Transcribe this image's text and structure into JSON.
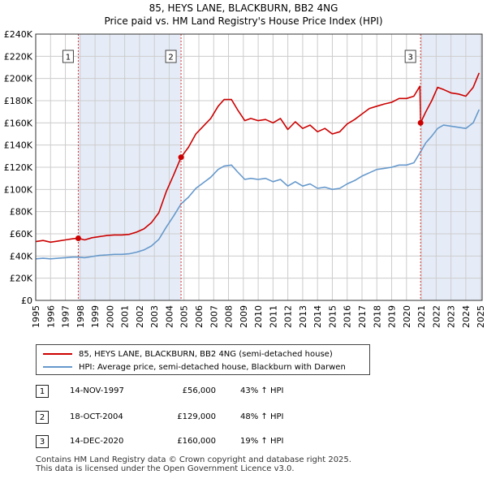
{
  "chart_data": {
    "type": "line",
    "title": "85, HEYS LANE, BLACKBURN, BB2 4NG",
    "subtitle": "Price paid vs. HM Land Registry's House Price Index (HPI)",
    "xlim": [
      1995,
      2025.1
    ],
    "ylim": [
      0,
      240000
    ],
    "x_ticks": [
      1995,
      1996,
      1997,
      1998,
      1999,
      2000,
      2001,
      2002,
      2003,
      2004,
      2005,
      2006,
      2007,
      2008,
      2009,
      2010,
      2011,
      2012,
      2013,
      2014,
      2015,
      2016,
      2017,
      2018,
      2019,
      2020,
      2021,
      2022,
      2023,
      2024,
      2025
    ],
    "y_ticks": [
      0,
      20000,
      40000,
      60000,
      80000,
      100000,
      120000,
      140000,
      160000,
      180000,
      200000,
      220000,
      240000
    ],
    "y_tick_labels": [
      "£0",
      "£20K",
      "£40K",
      "£60K",
      "£80K",
      "£100K",
      "£120K",
      "£140K",
      "£160K",
      "£180K",
      "£200K",
      "£220K",
      "£240K"
    ],
    "grid": true,
    "sale_bands": [
      {
        "start": 1997.87,
        "end": 2004.8
      },
      {
        "start": 2020.95,
        "end": 2025.1
      }
    ],
    "series": [
      {
        "name": "85, HEYS LANE, BLACKBURN, BB2 4NG (semi-detached house)",
        "color": "#cc0000",
        "x": [
          1995,
          1995.5,
          1996,
          1996.5,
          1997,
          1997.5,
          1997.87,
          1998.3,
          1998.8,
          1999.3,
          1999.8,
          2000.3,
          2000.8,
          2001.3,
          2001.8,
          2002.3,
          2002.8,
          2003.3,
          2003.8,
          2004.3,
          2004.8,
          2005.3,
          2005.8,
          2006.3,
          2006.8,
          2007.3,
          2007.7,
          2008.2,
          2008.6,
          2009.1,
          2009.5,
          2010,
          2010.5,
          2011,
          2011.5,
          2012,
          2012.5,
          2013,
          2013.5,
          2014,
          2014.5,
          2015,
          2015.5,
          2016,
          2016.5,
          2017,
          2017.5,
          2018,
          2018.5,
          2019,
          2019.5,
          2020,
          2020.5,
          2020.9,
          2020.95,
          2021.3,
          2021.7,
          2022.1,
          2022.5,
          2023,
          2023.5,
          2024,
          2024.5,
          2024.9
        ],
        "values": [
          53000,
          54000,
          52500,
          53500,
          54500,
          55500,
          56000,
          54500,
          56500,
          57500,
          58500,
          59000,
          59000,
          59500,
          61500,
          64500,
          70000,
          79000,
          98000,
          113000,
          129000,
          138000,
          150000,
          157000,
          164000,
          175000,
          181000,
          181000,
          172000,
          162000,
          164000,
          162000,
          163000,
          160000,
          164000,
          154000,
          161000,
          155000,
          158000,
          152000,
          155000,
          150000,
          152000,
          159000,
          163000,
          168000,
          173000,
          175000,
          177000,
          178500,
          182000,
          182000,
          184000,
          193000,
          160000,
          170000,
          180000,
          192000,
          190000,
          187000,
          186000,
          184000,
          192000,
          205000
        ]
      },
      {
        "name": "HPI: Average price, semi-detached house, Blackburn with Darwen",
        "color": "#6699cc",
        "x": [
          1995,
          1995.5,
          1996,
          1996.5,
          1997,
          1997.5,
          1997.87,
          1998.3,
          1998.8,
          1999.3,
          1999.8,
          2000.3,
          2000.8,
          2001.3,
          2001.8,
          2002.3,
          2002.8,
          2003.3,
          2003.8,
          2004.3,
          2004.8,
          2005.3,
          2005.8,
          2006.3,
          2006.8,
          2007.3,
          2007.7,
          2008.2,
          2008.6,
          2009.1,
          2009.5,
          2010,
          2010.5,
          2011,
          2011.5,
          2012,
          2012.5,
          2013,
          2013.5,
          2014,
          2014.5,
          2015,
          2015.5,
          2016,
          2016.5,
          2017,
          2017.5,
          2018,
          2018.5,
          2019,
          2019.5,
          2020,
          2020.5,
          2020.95,
          2021.3,
          2021.7,
          2022.1,
          2022.5,
          2023,
          2023.5,
          2024,
          2024.5,
          2024.9
        ],
        "values": [
          37500,
          38000,
          37500,
          38000,
          38500,
          39000,
          39000,
          38500,
          39500,
          40500,
          41000,
          41500,
          41500,
          42000,
          43500,
          45500,
          49000,
          55000,
          66000,
          76000,
          87000,
          93000,
          101000,
          106000,
          111000,
          118000,
          121000,
          122000,
          116000,
          109000,
          110000,
          109000,
          110000,
          107000,
          109000,
          103000,
          107000,
          103000,
          105000,
          101000,
          102000,
          100000,
          101000,
          105000,
          108000,
          112000,
          115000,
          118000,
          119000,
          120000,
          122000,
          122000,
          124000,
          134000,
          142000,
          148000,
          155000,
          158000,
          157000,
          156000,
          155000,
          160000,
          172000
        ]
      }
    ],
    "sale_points": [
      {
        "id": "1",
        "x": 1997.87,
        "y": 56000
      },
      {
        "id": "2",
        "x": 2004.8,
        "y": 129000
      },
      {
        "id": "3",
        "x": 2020.95,
        "y": 160000
      }
    ]
  },
  "legend": {
    "items": [
      {
        "label": "85, HEYS LANE, BLACKBURN, BB2 4NG (semi-detached house)",
        "color": "#cc0000"
      },
      {
        "label": "HPI: Average price, semi-detached house, Blackburn with Darwen",
        "color": "#6699cc"
      }
    ]
  },
  "sales": [
    {
      "id": "1",
      "date": "14-NOV-1997",
      "price": "£56,000",
      "hpi": "43% ↑ HPI"
    },
    {
      "id": "2",
      "date": "18-OCT-2004",
      "price": "£129,000",
      "hpi": "48% ↑ HPI"
    },
    {
      "id": "3",
      "date": "14-DEC-2020",
      "price": "£160,000",
      "hpi": "19% ↑ HPI"
    }
  ],
  "footer": {
    "line1": "Contains HM Land Registry data © Crown copyright and database right 2025.",
    "line2": "This data is licensed under the Open Government Licence v3.0."
  }
}
